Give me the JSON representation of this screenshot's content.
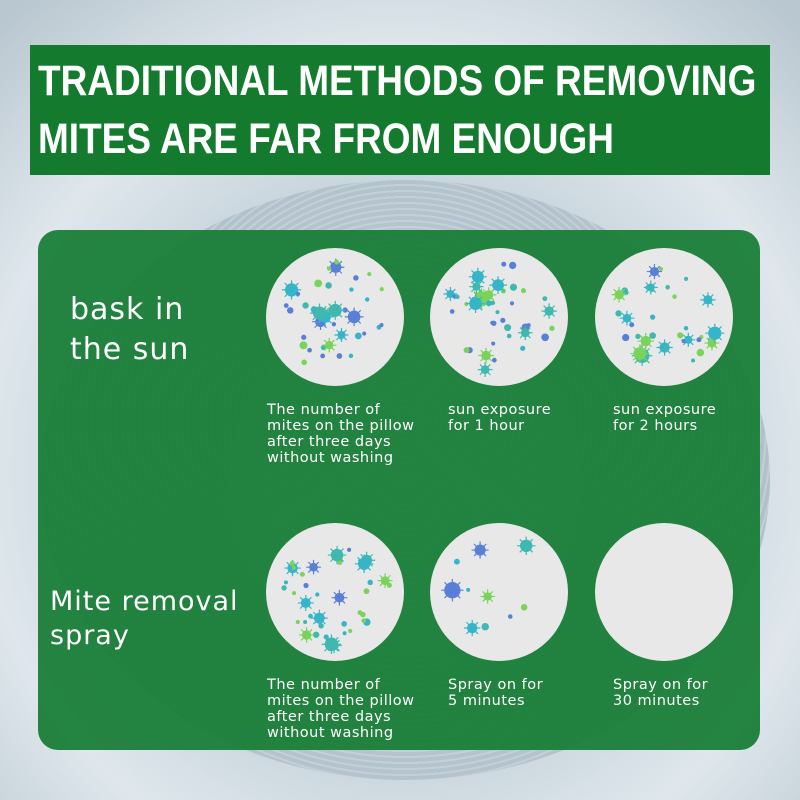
{
  "header": {
    "line1": "TRADITIONAL METHODS OF REMOVING",
    "line2": "MITES ARE FAR FROM ENOUGH",
    "color": "#137a2e"
  },
  "rows": [
    {
      "label_line1": "bask in",
      "label_line2": "the sun",
      "items": [
        {
          "caption": "The number of\nmites on the pillow\nafter three days\nwithout washing",
          "mite_density": 1.0
        },
        {
          "caption": "sun exposure\nfor 1 hour",
          "mite_density": 1.0
        },
        {
          "caption": "sun exposure\nfor 2 hours",
          "mite_density": 0.85
        }
      ]
    },
    {
      "label_line1": "Mite removal",
      "label_line2": "spray",
      "items": [
        {
          "caption": "The number of\nmites on the pillow\nafter three days\nwithout washing",
          "mite_density": 1.0
        },
        {
          "caption": "Spray on for\n5 minutes",
          "mite_density": 0.25
        },
        {
          "caption": "Spray on for\n30 minutes",
          "mite_density": 0
        }
      ]
    }
  ],
  "mite_colors": [
    "#3fb8b0",
    "#5a7fd6",
    "#7ad35a",
    "#36b5c9"
  ],
  "panel_color": "#167c34"
}
